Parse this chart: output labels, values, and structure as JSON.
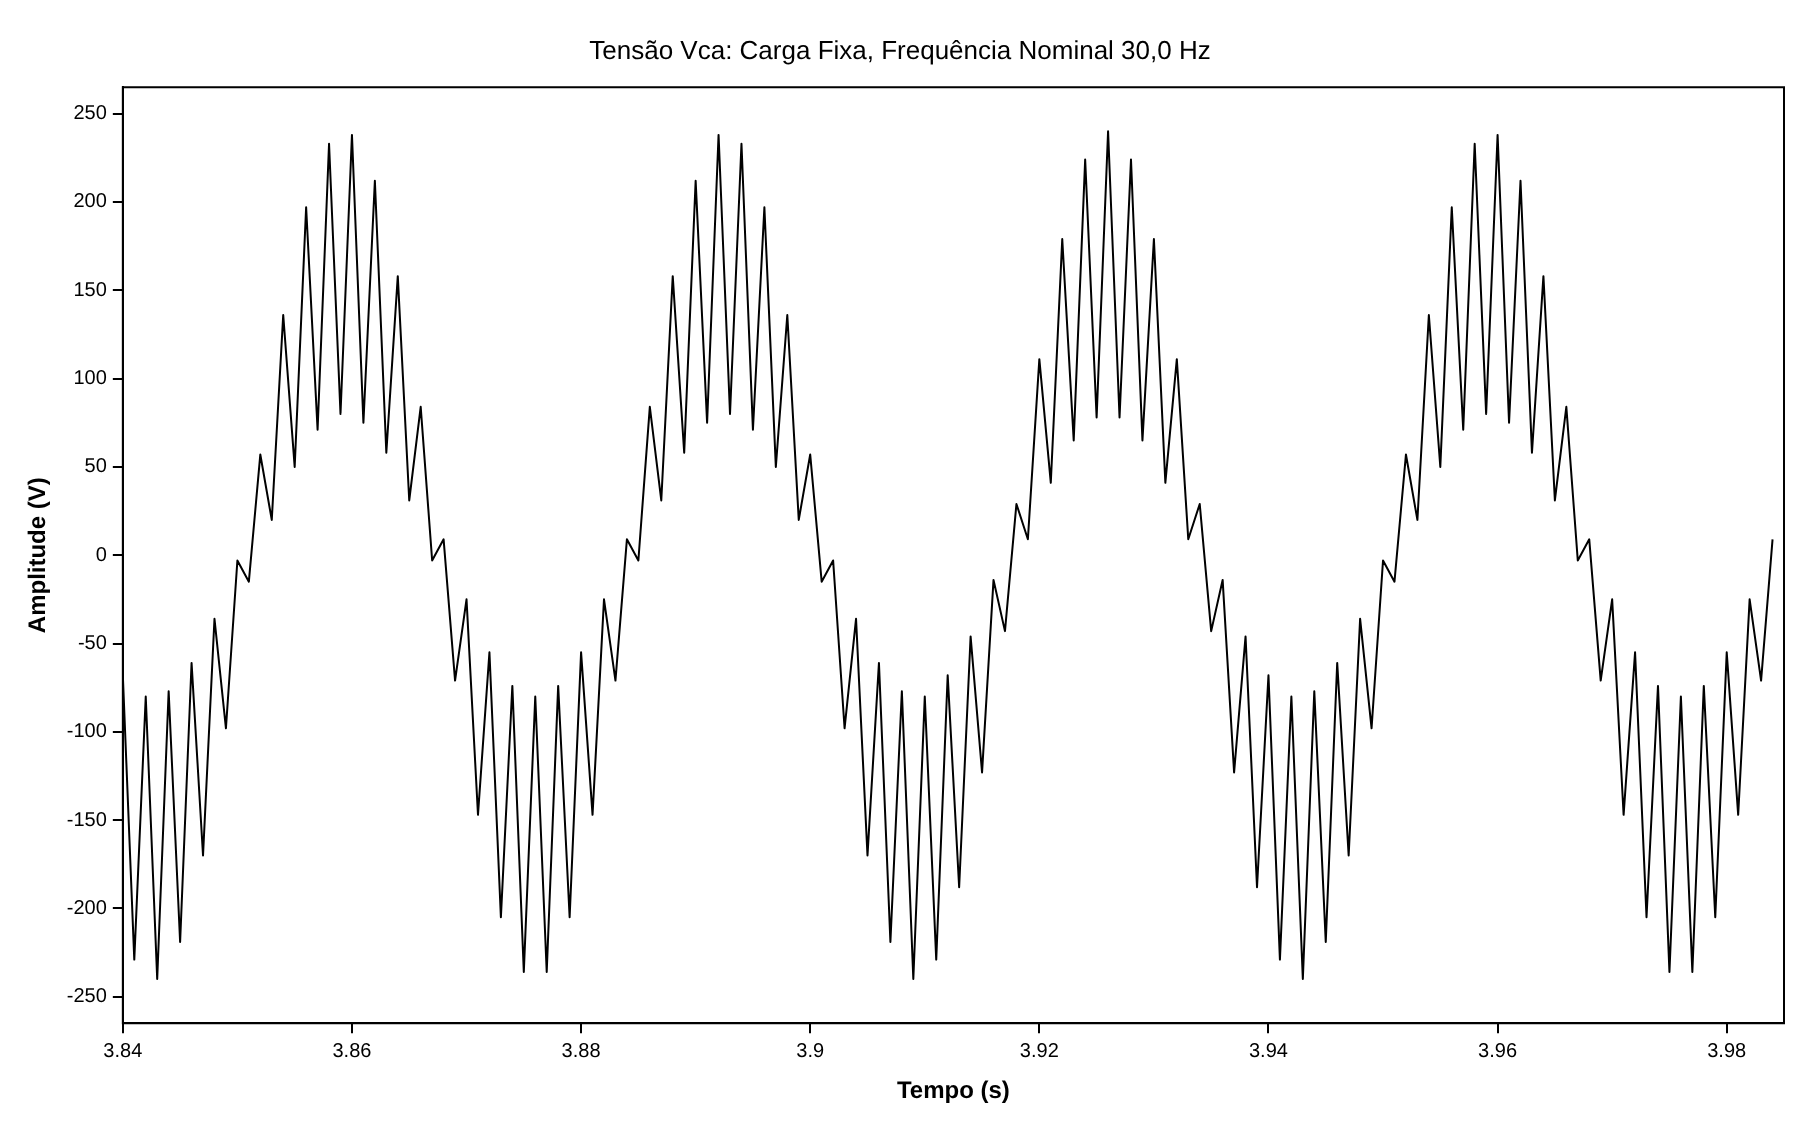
{
  "chart_data": {
    "type": "line",
    "title": "Tensão Vca: Carga Fixa, Frequência Nominal 30,0 Hz",
    "xlabel": "Tempo (s)",
    "ylabel": "Amplitude (V)",
    "x": [
      3.84,
      3.841,
      3.842,
      3.843,
      3.844,
      3.845,
      3.846,
      3.847,
      3.848,
      3.849,
      3.85,
      3.851,
      3.852,
      3.853,
      3.854,
      3.855,
      3.856,
      3.857,
      3.858,
      3.859,
      3.86,
      3.861,
      3.862,
      3.863,
      3.864,
      3.865,
      3.866,
      3.867,
      3.868,
      3.869,
      3.87,
      3.871,
      3.872,
      3.873,
      3.874,
      3.875,
      3.876,
      3.877,
      3.878,
      3.879,
      3.88,
      3.881,
      3.882,
      3.883,
      3.884,
      3.885,
      3.886,
      3.887,
      3.888,
      3.889,
      3.89,
      3.891,
      3.892,
      3.893,
      3.894,
      3.895,
      3.896,
      3.897,
      3.898,
      3.899,
      3.9,
      3.901,
      3.902,
      3.903,
      3.904,
      3.905,
      3.906,
      3.907,
      3.908,
      3.909,
      3.91,
      3.911,
      3.912,
      3.913,
      3.914,
      3.915,
      3.916,
      3.917,
      3.918,
      3.919,
      3.92,
      3.921,
      3.922,
      3.923,
      3.924,
      3.925,
      3.926,
      3.927,
      3.928,
      3.929,
      3.93,
      3.931,
      3.932,
      3.933,
      3.934,
      3.935,
      3.936,
      3.937,
      3.938,
      3.939,
      3.94,
      3.941,
      3.942,
      3.943,
      3.944,
      3.945,
      3.946,
      3.947,
      3.948,
      3.949,
      3.95,
      3.951,
      3.952,
      3.953,
      3.954,
      3.955,
      3.956,
      3.957,
      3.958,
      3.959,
      3.96,
      3.961,
      3.962,
      3.963,
      3.964,
      3.965,
      3.966,
      3.967,
      3.968,
      3.969,
      3.97,
      3.971,
      3.972,
      3.973,
      3.974,
      3.975,
      3.976,
      3.977,
      3.978,
      3.979,
      3.98,
      3.981,
      3.982,
      3.983,
      3.984
    ],
    "series": [
      {
        "color": "#000000",
        "values": [
          -68,
          -229,
          -80,
          -240,
          -77,
          -219,
          -61,
          -170,
          -36,
          -98,
          -3,
          -15,
          57,
          20,
          136,
          50,
          197,
          71,
          233,
          80,
          238,
          75,
          212,
          58,
          158,
          31,
          84,
          -3,
          9,
          -71,
          -25,
          -147,
          -55,
          -205,
          -74,
          -236,
          -80,
          -236,
          -74,
          -205,
          -55,
          -147,
          -25,
          -71,
          9,
          -3,
          84,
          31,
          158,
          58,
          212,
          75,
          238,
          80,
          233,
          71,
          197,
          50,
          136,
          20,
          57,
          -15,
          -3,
          -98,
          -36,
          -170,
          -61,
          -219,
          -77,
          -240,
          -80,
          -229,
          -68,
          -188,
          -46,
          -123,
          -14,
          -43,
          29,
          9,
          111,
          41,
          179,
          65,
          224,
          78,
          240,
          78,
          224,
          65,
          179,
          41,
          111,
          9,
          29,
          -43,
          -14,
          -123,
          -46,
          -188,
          -68,
          -229,
          -80,
          -240,
          -77,
          -219,
          -61,
          -170,
          -36,
          -98,
          -3,
          -15,
          57,
          20,
          136,
          50,
          197,
          71,
          233,
          80,
          238,
          75,
          212,
          58,
          158,
          31,
          84,
          -3,
          9,
          -71,
          -25,
          -147,
          -55,
          -205,
          -74,
          -236,
          -80,
          -236,
          -74,
          -205,
          -55,
          -147,
          -25,
          -71,
          9
        ]
      }
    ],
    "xlim": [
      3.84,
      3.985
    ],
    "xticks": [
      3.84,
      3.86,
      3.88,
      3.9,
      3.92,
      3.94,
      3.96,
      3.98
    ],
    "ylim": [
      -265,
      265
    ],
    "yticks": [
      -250,
      -200,
      -150,
      -100,
      -50,
      0,
      50,
      100,
      150,
      200,
      250
    ],
    "grid": false,
    "legend": false,
    "marker": "none",
    "line_style": "solid"
  }
}
